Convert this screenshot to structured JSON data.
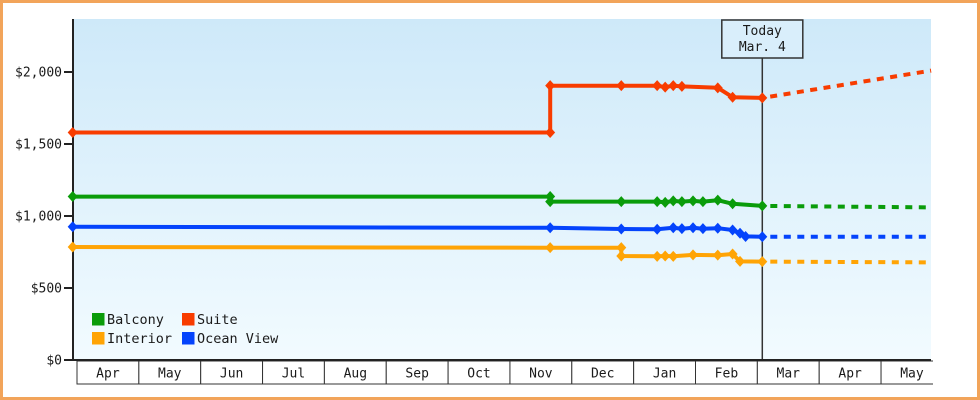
{
  "chart_data": {
    "type": "line",
    "description": "Cruise cabin price history with forecast",
    "y_axis": {
      "ticks": [
        0,
        500,
        1000,
        1500,
        2000
      ],
      "tick_labels": [
        "$0",
        "$500",
        "$1,000",
        "$1,500",
        "$2,000"
      ],
      "range": [
        0,
        2370
      ]
    },
    "x_axis": {
      "months": [
        "Apr",
        "May",
        "Jun",
        "Jul",
        "Aug",
        "Sep",
        "Oct",
        "Nov",
        "Dec",
        "Jan",
        "Feb",
        "Mar",
        "Apr",
        "May"
      ]
    },
    "today": {
      "line1": "Today",
      "line2": "Mar. 4",
      "month_position": 11.08
    },
    "series": [
      {
        "name": "Balcony",
        "color": "#0a9c0a",
        "points": [
          [
            -0.07,
            1135
          ],
          [
            7.65,
            1135
          ],
          [
            7.65,
            1100
          ],
          [
            8.8,
            1100
          ],
          [
            9.38,
            1100
          ],
          [
            9.51,
            1095
          ],
          [
            9.64,
            1105
          ],
          [
            9.78,
            1100
          ],
          [
            9.96,
            1105
          ],
          [
            10.12,
            1100
          ],
          [
            10.36,
            1110
          ],
          [
            10.6,
            1085
          ],
          [
            11.08,
            1070
          ]
        ],
        "forecast": [
          [
            11.08,
            1070
          ],
          [
            13.81,
            1060
          ]
        ]
      },
      {
        "name": "Suite",
        "color": "#f83c00",
        "points": [
          [
            -0.07,
            1580
          ],
          [
            7.65,
            1580
          ],
          [
            7.65,
            1905
          ],
          [
            8.8,
            1905
          ],
          [
            9.38,
            1905
          ],
          [
            9.51,
            1895
          ],
          [
            9.64,
            1905
          ],
          [
            9.78,
            1900
          ],
          [
            10.36,
            1890
          ],
          [
            10.6,
            1825
          ],
          [
            11.08,
            1820
          ]
        ],
        "forecast": [
          [
            11.08,
            1820
          ],
          [
            13.81,
            2010
          ]
        ]
      },
      {
        "name": "Interior",
        "color": "#ffa405",
        "points": [
          [
            -0.07,
            785
          ],
          [
            7.65,
            780
          ],
          [
            8.8,
            780
          ],
          [
            8.8,
            722
          ],
          [
            9.38,
            720
          ],
          [
            9.51,
            722
          ],
          [
            9.64,
            720
          ],
          [
            9.96,
            730
          ],
          [
            10.36,
            728
          ],
          [
            10.6,
            736
          ],
          [
            10.72,
            685
          ],
          [
            11.08,
            683
          ]
        ],
        "forecast": [
          [
            11.08,
            683
          ],
          [
            13.81,
            678
          ]
        ]
      },
      {
        "name": "Ocean View",
        "color": "#0443fc",
        "points": [
          [
            -0.07,
            925
          ],
          [
            7.65,
            918
          ],
          [
            8.8,
            910
          ],
          [
            9.38,
            908
          ],
          [
            9.64,
            918
          ],
          [
            9.78,
            912
          ],
          [
            9.96,
            918
          ],
          [
            10.12,
            912
          ],
          [
            10.36,
            915
          ],
          [
            10.6,
            903
          ],
          [
            10.72,
            880
          ],
          [
            10.81,
            858
          ],
          [
            11.08,
            856
          ]
        ],
        "forecast": [
          [
            11.08,
            856
          ],
          [
            13.81,
            856
          ]
        ]
      }
    ],
    "legend": {
      "rows": [
        [
          "Balcony",
          "Suite"
        ],
        [
          "Interior",
          "Ocean View"
        ]
      ]
    }
  },
  "colors": {
    "outer_border": "#f2a45a",
    "axis": "#222222",
    "box_border": "#333333",
    "plot_bg_top": "#cee9f9",
    "plot_bg_bottom": "#f2fbff",
    "today_box_fill": "#d9eefb",
    "month_box_fill": "#ffffff",
    "text": "#1a1a1a"
  }
}
